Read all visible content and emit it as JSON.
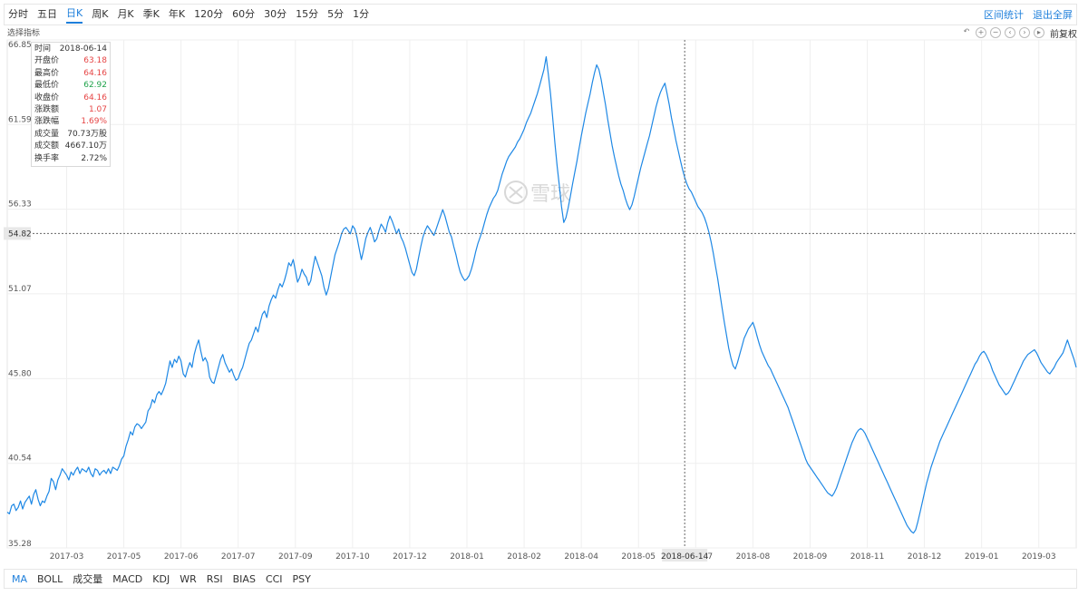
{
  "toolbar": {
    "periods": [
      "分时",
      "五日",
      "日K",
      "周K",
      "月K",
      "季K",
      "年K",
      "120分",
      "60分",
      "30分",
      "15分",
      "5分",
      "1分"
    ],
    "active_period": "日K",
    "range_stats": "区间统计",
    "exit_fullscreen": "退出全屏"
  },
  "indicator_select": "选择指标",
  "adjust_mode": "前复权",
  "tools": [
    "undo-icon",
    "zoom-in-icon",
    "zoom-out-icon",
    "pan-left-icon",
    "pan-right-icon",
    "play-icon"
  ],
  "watermark": "雪球",
  "tooltip": {
    "rows": [
      {
        "label": "时间",
        "value": "2018-06-14",
        "trend": "neutral"
      },
      {
        "label": "开盘价",
        "value": "63.18",
        "trend": "up"
      },
      {
        "label": "最高价",
        "value": "64.16",
        "trend": "up"
      },
      {
        "label": "最低价",
        "value": "62.92",
        "trend": "down"
      },
      {
        "label": "收盘价",
        "value": "64.16",
        "trend": "up"
      },
      {
        "label": "涨跌额",
        "value": "1.07",
        "trend": "up"
      },
      {
        "label": "涨跌幅",
        "value": "1.69%",
        "trend": "up"
      },
      {
        "label": "成交量",
        "value": "70.73万股",
        "trend": "neutral"
      },
      {
        "label": "成交额",
        "value": "4667.10万",
        "trend": "neutral"
      },
      {
        "label": "换手率",
        "value": "2.72%",
        "trend": "neutral"
      }
    ]
  },
  "crosshair": {
    "x_label": "2018-06-14",
    "y_label": "54.82",
    "x_index": 308,
    "y_value": 54.82
  },
  "indicators": [
    "MA",
    "BOLL",
    "成交量",
    "MACD",
    "KDJ",
    "WR",
    "RSI",
    "BIAS",
    "CCI",
    "PSY"
  ],
  "active_indicator": "MA",
  "colors": {
    "line": "#1e88e5",
    "accent": "#1e7fdb",
    "up": "#e64545",
    "down": "#1fa24a",
    "grid": "#efefef"
  },
  "chart_data": {
    "type": "line",
    "ylim": [
      35.28,
      66.85
    ],
    "y_ticks": [
      66.85,
      61.59,
      56.33,
      51.07,
      45.8,
      40.54,
      35.28
    ],
    "y_tick_labels": [
      "66.85",
      "61.59",
      "56.33",
      "51.07",
      "45.80",
      "40.54",
      "35.28"
    ],
    "x_tick_labels": [
      "2017-03",
      "2017-05",
      "2017-06",
      "2017-07",
      "2017-09",
      "2017-10",
      "2017-12",
      "2018-01",
      "2018-02",
      "2018-04",
      "2018-05",
      "2018-07",
      "2018-08",
      "2018-09",
      "2018-11",
      "2018-12",
      "2019-01",
      "2019-03"
    ],
    "x_tick_index": [
      27,
      53,
      79,
      105,
      131,
      157,
      183,
      209,
      235,
      261,
      287,
      313,
      339,
      365,
      391,
      417,
      443,
      469
    ],
    "grid": true,
    "series": [
      {
        "values": [
          37.5,
          37.4,
          37.9,
          38.0,
          37.6,
          37.8,
          38.2,
          37.7,
          38.1,
          38.3,
          38.5,
          38.0,
          38.6,
          38.9,
          38.3,
          37.9,
          38.2,
          38.1,
          38.5,
          38.8,
          39.6,
          39.4,
          38.9,
          39.5,
          39.8,
          40.2,
          40.0,
          39.8,
          39.5,
          40.0,
          39.8,
          40.1,
          40.3,
          39.9,
          40.2,
          40.1,
          40.0,
          40.3,
          39.9,
          39.7,
          40.2,
          40.1,
          39.8,
          40.0,
          40.1,
          39.9,
          40.2,
          39.9,
          40.3,
          40.2,
          40.1,
          40.4,
          40.8,
          41.0,
          41.6,
          42.0,
          42.5,
          42.3,
          42.8,
          43.0,
          42.9,
          42.7,
          42.9,
          43.1,
          43.8,
          44.0,
          44.5,
          44.3,
          44.8,
          45.0,
          44.8,
          45.1,
          45.5,
          46.2,
          46.9,
          46.5,
          47.0,
          46.8,
          47.2,
          46.9,
          46.1,
          45.9,
          46.4,
          46.8,
          46.5,
          47.3,
          47.8,
          48.2,
          47.5,
          46.9,
          47.1,
          46.8,
          45.9,
          45.6,
          45.5,
          46.0,
          46.5,
          47.0,
          47.3,
          46.8,
          46.5,
          46.2,
          46.4,
          46.0,
          45.7,
          45.8,
          46.2,
          46.5,
          47.0,
          47.5,
          48.0,
          48.2,
          48.6,
          49.0,
          48.7,
          49.3,
          49.8,
          50.0,
          49.6,
          50.3,
          50.7,
          51.0,
          50.8,
          51.3,
          51.7,
          51.5,
          51.9,
          52.4,
          53.0,
          52.8,
          53.2,
          52.5,
          51.8,
          52.1,
          52.6,
          52.3,
          52.1,
          51.6,
          51.9,
          52.7,
          53.4,
          53.0,
          52.6,
          52.2,
          51.5,
          51.0,
          51.4,
          52.1,
          52.8,
          53.5,
          53.9,
          54.3,
          54.8,
          55.1,
          55.2,
          55.0,
          54.8,
          55.3,
          55.1,
          54.6,
          53.9,
          53.2,
          53.8,
          54.5,
          54.9,
          55.2,
          54.8,
          54.3,
          54.5,
          55.0,
          55.4,
          55.2,
          54.9,
          55.5,
          55.9,
          55.6,
          55.2,
          54.8,
          55.1,
          54.6,
          54.3,
          53.9,
          53.4,
          52.9,
          52.4,
          52.2,
          52.6,
          53.3,
          54.0,
          54.6,
          55.0,
          55.3,
          55.1,
          54.9,
          54.7,
          55.1,
          55.5,
          55.9,
          56.3,
          55.9,
          55.4,
          54.9,
          54.6,
          54.0,
          53.5,
          52.9,
          52.4,
          52.1,
          51.9,
          52.0,
          52.2,
          52.6,
          53.1,
          53.7,
          54.2,
          54.6,
          55.0,
          55.5,
          56.0,
          56.4,
          56.7,
          57.0,
          57.2,
          57.5,
          58.0,
          58.5,
          58.9,
          59.3,
          59.6,
          59.8,
          60.0,
          60.2,
          60.5,
          60.7,
          61.0,
          61.3,
          61.7,
          62.0,
          62.3,
          62.7,
          63.1,
          63.5,
          64.0,
          64.5,
          65.0,
          65.8,
          64.7,
          63.5,
          62.0,
          60.4,
          59.0,
          57.8,
          56.5,
          55.5,
          55.8,
          56.4,
          57.1,
          57.9,
          58.6,
          59.3,
          60.1,
          60.9,
          61.6,
          62.3,
          62.9,
          63.5,
          64.2,
          64.8,
          65.3,
          65.0,
          64.4,
          63.6,
          62.8,
          61.9,
          61.1,
          60.3,
          59.6,
          59.0,
          58.4,
          57.9,
          57.5,
          57.0,
          56.6,
          56.3,
          56.6,
          57.1,
          57.7,
          58.3,
          58.9,
          59.4,
          59.9,
          60.4,
          60.9,
          61.5,
          62.1,
          62.7,
          63.2,
          63.6,
          63.9,
          64.16,
          63.5,
          62.8,
          62.0,
          61.3,
          60.6,
          60.0,
          59.4,
          58.8,
          58.3,
          57.9,
          57.6,
          57.4,
          57.1,
          56.8,
          56.5,
          56.3,
          56.1,
          55.8,
          55.4,
          54.9,
          54.3,
          53.6,
          52.8,
          52.0,
          51.1,
          50.2,
          49.3,
          48.5,
          47.7,
          47.1,
          46.6,
          46.4,
          46.8,
          47.3,
          47.8,
          48.3,
          48.6,
          48.9,
          49.1,
          49.3,
          48.9,
          48.4,
          47.9,
          47.5,
          47.2,
          46.9,
          46.6,
          46.4,
          46.1,
          45.8,
          45.5,
          45.2,
          44.9,
          44.6,
          44.3,
          44.0,
          43.6,
          43.2,
          42.8,
          42.4,
          42.0,
          41.6,
          41.2,
          40.8,
          40.5,
          40.3,
          40.1,
          39.9,
          39.7,
          39.5,
          39.3,
          39.1,
          38.9,
          38.7,
          38.6,
          38.5,
          38.7,
          39.0,
          39.4,
          39.8,
          40.2,
          40.6,
          41.0,
          41.4,
          41.8,
          42.1,
          42.4,
          42.6,
          42.7,
          42.6,
          42.4,
          42.1,
          41.8,
          41.5,
          41.2,
          40.9,
          40.6,
          40.3,
          40.0,
          39.7,
          39.4,
          39.1,
          38.8,
          38.5,
          38.2,
          37.9,
          37.6,
          37.3,
          37.0,
          36.7,
          36.5,
          36.3,
          36.2,
          36.4,
          36.9,
          37.5,
          38.1,
          38.7,
          39.3,
          39.8,
          40.3,
          40.7,
          41.1,
          41.5,
          41.9,
          42.2,
          42.5,
          42.8,
          43.1,
          43.4,
          43.7,
          44.0,
          44.3,
          44.6,
          44.9,
          45.2,
          45.5,
          45.8,
          46.1,
          46.4,
          46.7,
          46.9,
          47.2,
          47.4,
          47.5,
          47.3,
          47.0,
          46.7,
          46.3,
          46.0,
          45.7,
          45.4,
          45.2,
          45.0,
          44.8,
          44.9,
          45.1,
          45.4,
          45.7,
          46.0,
          46.3,
          46.6,
          46.9,
          47.1,
          47.3,
          47.4,
          47.5,
          47.6,
          47.4,
          47.1,
          46.8,
          46.6,
          46.4,
          46.2,
          46.1,
          46.3,
          46.5,
          46.8,
          47.0,
          47.2,
          47.4,
          47.8,
          48.2,
          47.8,
          47.4,
          47.0,
          46.5
        ]
      }
    ]
  }
}
